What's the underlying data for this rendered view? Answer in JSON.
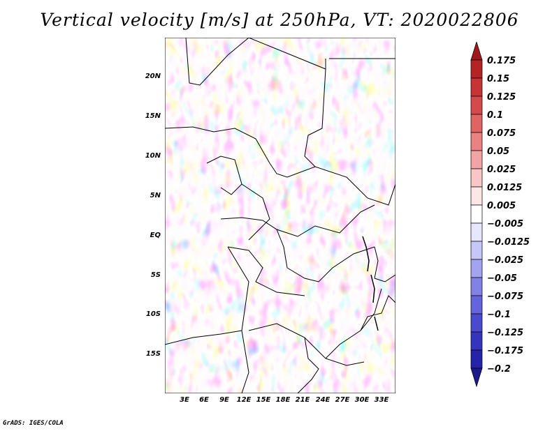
{
  "title": "Vertical velocity [m/s] at 250hPa, VT: 2020022806",
  "credit": "GrADS: IGES/COLA",
  "map": {
    "lat_labels": [
      "20N",
      "15N",
      "10N",
      "5N",
      "EQ",
      "5S",
      "10S",
      "15S"
    ],
    "lon_labels": [
      "3E",
      "6E",
      "9E",
      "12E",
      "15E",
      "18E",
      "21E",
      "24E",
      "27E",
      "30E",
      "33E"
    ]
  },
  "colorbar": {
    "labels": [
      "0.175",
      "0.15",
      "0.125",
      "0.1",
      "0.075",
      "0.05",
      "0.025",
      "0.0125",
      "0.005",
      "−0.005",
      "−0.0125",
      "−0.025",
      "−0.05",
      "−0.075",
      "−0.1",
      "−0.125",
      "−0.175",
      "−0.2"
    ],
    "colors": [
      "#9e1a1a",
      "#b52424",
      "#c63434",
      "#d44a4a",
      "#e06464",
      "#ea8282",
      "#f2a3a3",
      "#f8c6c6",
      "#fce6e6",
      "#ffffff",
      "#e6e6fc",
      "#c6c6f8",
      "#a3a3f0",
      "#8282e6",
      "#6464dc",
      "#4a4ace",
      "#3434bc",
      "#2424a8",
      "#1a1a8c"
    ]
  }
}
